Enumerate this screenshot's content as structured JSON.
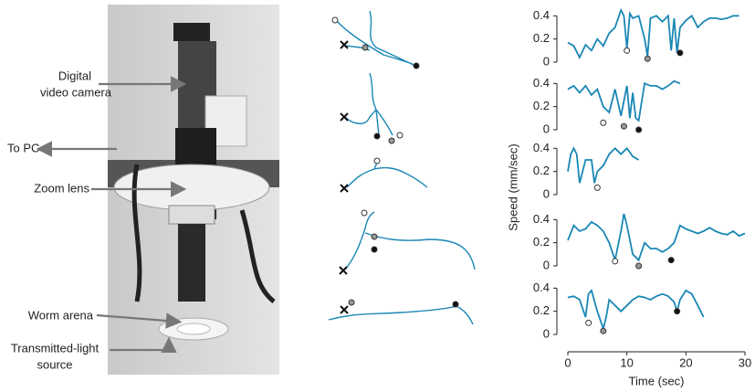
{
  "photo": {
    "labels": [
      {
        "lines": [
          "Digital",
          "video camera"
        ]
      },
      {
        "lines": [
          "To PC"
        ]
      },
      {
        "lines": [
          "Zoom lens"
        ]
      },
      {
        "lines": [
          "Worm arena"
        ]
      },
      {
        "lines": [
          "Transmitted-light",
          "source"
        ]
      }
    ]
  },
  "chart_data": [
    {
      "type": "line",
      "color": "#1a87b5",
      "xlim": [
        0,
        30
      ],
      "ylim": [
        0,
        0.45
      ],
      "yticks": [
        0,
        0.2,
        0.4
      ],
      "x": [
        0,
        1,
        2,
        3,
        4,
        5,
        6,
        7,
        8,
        9,
        9.5,
        10,
        10.5,
        11,
        12,
        13,
        13.5,
        14,
        15,
        16,
        17,
        17.5,
        18,
        18.5,
        19,
        20,
        21,
        22,
        23,
        24,
        25,
        26,
        27,
        28,
        29
      ],
      "values": [
        0.17,
        0.14,
        0.04,
        0.15,
        0.1,
        0.2,
        0.14,
        0.25,
        0.3,
        0.45,
        0.4,
        0.12,
        0.42,
        0.38,
        0.4,
        0.2,
        0.05,
        0.38,
        0.4,
        0.35,
        0.4,
        0.1,
        0.38,
        0.08,
        0.3,
        0.36,
        0.4,
        0.3,
        0.35,
        0.38,
        0.38,
        0.37,
        0.38,
        0.4,
        0.4
      ],
      "events": [
        {
          "x": 10,
          "y": 0.1,
          "fill": "#ffffff"
        },
        {
          "x": 13.5,
          "y": 0.03,
          "fill": "#999999"
        },
        {
          "x": 19,
          "y": 0.08,
          "fill": "#111111"
        }
      ]
    },
    {
      "type": "line",
      "color": "#1a87b5",
      "xlim": [
        0,
        30
      ],
      "ylim": [
        0,
        0.45
      ],
      "yticks": [
        0,
        0.2,
        0.4
      ],
      "x": [
        0,
        1,
        2,
        3,
        4,
        5,
        6,
        7,
        8,
        9,
        10,
        10.5,
        11,
        11.5,
        12,
        13,
        14,
        15,
        16,
        17,
        18,
        19
      ],
      "values": [
        0.35,
        0.38,
        0.32,
        0.38,
        0.3,
        0.35,
        0.2,
        0.15,
        0.35,
        0.12,
        0.38,
        0.1,
        0.32,
        0.1,
        0.08,
        0.4,
        0.38,
        0.38,
        0.35,
        0.38,
        0.42,
        0.4
      ],
      "events": [
        {
          "x": 6,
          "y": 0.06,
          "fill": "#ffffff"
        },
        {
          "x": 9.5,
          "y": 0.03,
          "fill": "#999999"
        },
        {
          "x": 12,
          "y": 0,
          "fill": "#111111"
        }
      ]
    },
    {
      "type": "line",
      "color": "#1a87b5",
      "xlim": [
        0,
        30
      ],
      "ylim": [
        0,
        0.45
      ],
      "yticks": [
        0,
        0.2,
        0.4
      ],
      "ylabel": "Speed (mm/sec)",
      "x": [
        0,
        0.5,
        1,
        1.5,
        2,
        3,
        4,
        4.5,
        5,
        6,
        7,
        8,
        9,
        10,
        11,
        12
      ],
      "values": [
        0.2,
        0.35,
        0.4,
        0.35,
        0.1,
        0.3,
        0.3,
        0.1,
        0.2,
        0.25,
        0.35,
        0.4,
        0.35,
        0.4,
        0.33,
        0.3
      ],
      "events": [
        {
          "x": 5,
          "y": 0.06,
          "fill": "#ffffff"
        }
      ]
    },
    {
      "type": "line",
      "color": "#1a87b5",
      "xlim": [
        0,
        30
      ],
      "ylim": [
        0,
        0.45
      ],
      "yticks": [
        0,
        0.2,
        0.4
      ],
      "x": [
        0,
        1,
        2,
        3,
        4,
        5,
        6,
        7,
        8,
        9,
        9.5,
        10,
        11,
        12,
        13,
        14,
        15,
        16,
        17,
        18,
        19,
        20,
        21,
        22,
        23,
        24,
        25,
        26,
        27,
        28,
        29,
        30
      ],
      "values": [
        0.22,
        0.35,
        0.3,
        0.32,
        0.38,
        0.35,
        0.3,
        0.2,
        0.05,
        0.3,
        0.45,
        0.35,
        0.1,
        0.05,
        0.2,
        0.15,
        0.15,
        0.12,
        0.15,
        0.2,
        0.35,
        0.32,
        0.3,
        0.28,
        0.3,
        0.33,
        0.3,
        0.28,
        0.27,
        0.3,
        0.26,
        0.28
      ],
      "events": [
        {
          "x": 8,
          "y": 0.04,
          "fill": "#ffffff"
        },
        {
          "x": 12,
          "y": 0,
          "fill": "#999999"
        },
        {
          "x": 17.5,
          "y": 0.05,
          "fill": "#111111"
        }
      ]
    },
    {
      "type": "line",
      "color": "#1a87b5",
      "xlim": [
        0,
        30
      ],
      "ylim": [
        0,
        0.45
      ],
      "yticks": [
        0,
        0.2,
        0.4
      ],
      "xticks": [
        0,
        10,
        20,
        30
      ],
      "xlabel": "Time (sec)",
      "x": [
        0,
        1,
        2,
        3,
        3.5,
        4,
        5,
        6,
        6.5,
        7,
        8,
        9,
        10,
        11,
        12,
        13,
        14,
        15,
        16,
        17,
        18,
        18.5,
        19,
        20,
        21,
        22,
        23
      ],
      "values": [
        0.32,
        0.33,
        0.3,
        0.15,
        0.35,
        0.38,
        0.2,
        0.05,
        0.15,
        0.3,
        0.25,
        0.2,
        0.25,
        0.3,
        0.33,
        0.32,
        0.3,
        0.33,
        0.35,
        0.33,
        0.28,
        0.2,
        0.3,
        0.38,
        0.35,
        0.25,
        0.15
      ],
      "events": [
        {
          "x": 3.5,
          "y": 0.1,
          "fill": "#ffffff"
        },
        {
          "x": 6,
          "y": 0.03,
          "fill": "#999999"
        },
        {
          "x": 18.5,
          "y": 0.2,
          "fill": "#111111"
        }
      ]
    }
  ]
}
